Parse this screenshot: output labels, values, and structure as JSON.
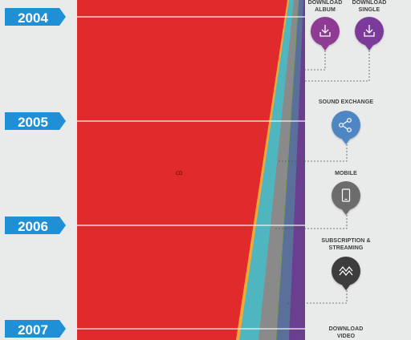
{
  "chart_data": {
    "type": "area",
    "title": "",
    "xlabel": "",
    "ylabel": "",
    "orientation": "vertical-timeline",
    "years": [
      "2004",
      "2005",
      "2006",
      "2007"
    ],
    "series_label": "CD",
    "colors": {
      "cd": "#e02a2c",
      "download_album": "#f2a934",
      "download_single": "#4fb6c0",
      "sound_exchange": "#8a8a8a",
      "mobile": "#5a6f9a",
      "subscription_streaming": "#6b3f8f",
      "year_tag": "#1f8fd6",
      "plot_bg": "#7b7dbd"
    },
    "formats": [
      {
        "id": "download_album",
        "label": "DOWNLOAD ALBUM",
        "icon": "download-icon",
        "color": "#8d3a93"
      },
      {
        "id": "download_single",
        "label": "DOWNLOAD SINGLE",
        "icon": "download-icon",
        "color": "#7c3a9a"
      },
      {
        "id": "sound_exchange",
        "label": "SOUND EXCHANGE",
        "icon": "share-icon",
        "color": "#4d86c2"
      },
      {
        "id": "mobile",
        "label": "MOBILE",
        "icon": "phone-icon",
        "color": "#6c6c6c"
      },
      {
        "id": "subscription_streaming",
        "label": "SUBSCRIPTION & STREAMING",
        "icon": "stream-icon",
        "color": "#3c3c3c"
      },
      {
        "id": "download_video",
        "label": "DOWNLOAD VIDEO",
        "icon": "",
        "color": ""
      }
    ]
  }
}
